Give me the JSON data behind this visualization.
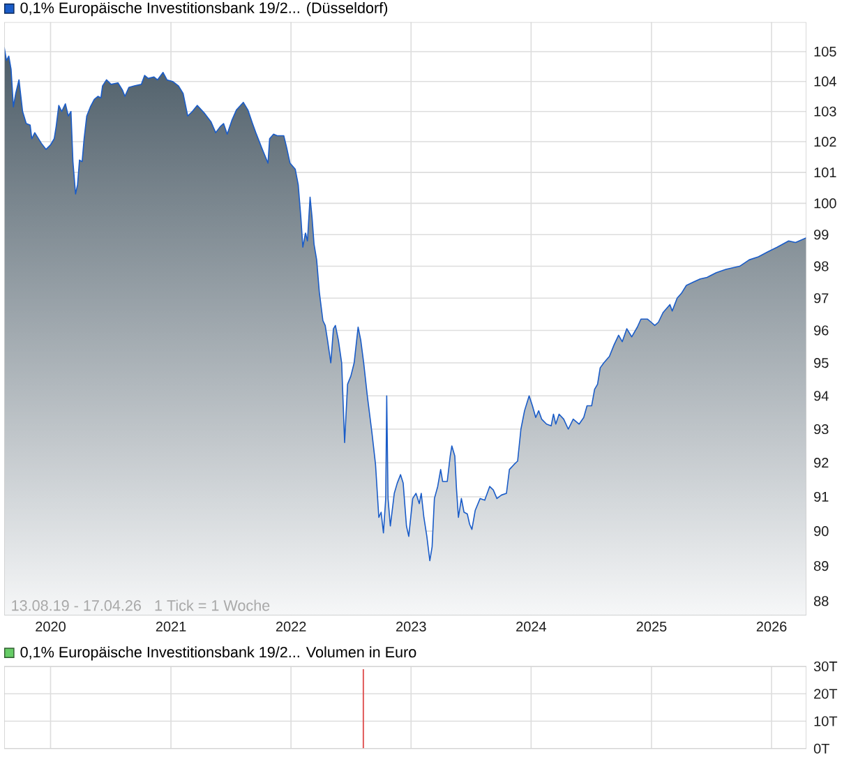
{
  "chart_data": [
    {
      "type": "area",
      "x": [
        "2019-08-13",
        "2019-08-20",
        "2019-08-27",
        "2019-09-03",
        "2019-09-10",
        "2019-09-17",
        "2019-09-27",
        "2019-10-08",
        "2019-10-19",
        "2019-10-31",
        "2019-11-05",
        "2019-11-14",
        "2019-12-04",
        "2019-12-18",
        "2020-01-01",
        "2020-01-12",
        "2020-01-18",
        "2020-01-26",
        "2020-02-04",
        "2020-02-15",
        "2020-02-24",
        "2020-03-03",
        "2020-03-09",
        "2020-03-17",
        "2020-03-23",
        "2020-03-29",
        "2020-04-06",
        "2020-04-12",
        "2020-04-20",
        "2020-05-01",
        "2020-05-13",
        "2020-05-24",
        "2020-06-02",
        "2020-06-07",
        "2020-06-19",
        "2020-07-03",
        "2020-07-24",
        "2020-08-07",
        "2020-08-14",
        "2020-08-26",
        "2020-09-12",
        "2020-10-03",
        "2020-10-13",
        "2020-10-24",
        "2020-11-10",
        "2020-11-21",
        "2020-12-08",
        "2020-12-20",
        "2021-01-06",
        "2021-01-24",
        "2021-02-07",
        "2021-02-21",
        "2021-03-07",
        "2021-03-22",
        "2021-04-12",
        "2021-05-03",
        "2021-05-17",
        "2021-05-31",
        "2021-06-10",
        "2021-06-21",
        "2021-07-05",
        "2021-07-19",
        "2021-08-09",
        "2021-08-23",
        "2021-09-06",
        "2021-09-16",
        "2021-10-04",
        "2021-10-23",
        "2021-10-28",
        "2021-11-09",
        "2021-11-20",
        "2021-12-10",
        "2021-12-19",
        "2021-12-29",
        "2022-01-14",
        "2022-01-23",
        "2022-01-31",
        "2022-02-06",
        "2022-02-14",
        "2022-02-20",
        "2022-02-28",
        "2022-03-06",
        "2022-03-12",
        "2022-03-20",
        "2022-03-28",
        "2022-04-08",
        "2022-04-15",
        "2022-04-22",
        "2022-05-02",
        "2022-05-10",
        "2022-05-16",
        "2022-05-25",
        "2022-06-04",
        "2022-06-13",
        "2022-06-22",
        "2022-07-02",
        "2022-07-12",
        "2022-07-24",
        "2022-08-01",
        "2022-08-10",
        "2022-08-21",
        "2022-09-04",
        "2022-09-15",
        "2022-09-25",
        "2022-10-02",
        "2022-10-09",
        "2022-10-16",
        "2022-10-19",
        "2022-10-23",
        "2022-10-30",
        "2022-11-11",
        "2022-11-20",
        "2022-11-30",
        "2022-12-08",
        "2022-12-18",
        "2022-12-25",
        "2023-01-06",
        "2023-01-16",
        "2023-01-26",
        "2023-02-01",
        "2023-02-09",
        "2023-02-18",
        "2023-02-27",
        "2023-03-06",
        "2023-03-13",
        "2023-03-23",
        "2023-04-01",
        "2023-04-07",
        "2023-04-21",
        "2023-04-30",
        "2023-05-05",
        "2023-05-14",
        "2023-05-19",
        "2023-05-25",
        "2023-06-03",
        "2023-06-11",
        "2023-06-21",
        "2023-06-28",
        "2023-07-05",
        "2023-07-15",
        "2023-07-30",
        "2023-08-13",
        "2023-08-28",
        "2023-09-08",
        "2023-09-19",
        "2023-10-03",
        "2023-10-18",
        "2023-10-27",
        "2023-11-10",
        "2023-11-21",
        "2023-12-01",
        "2023-12-12",
        "2023-12-26",
        "2024-01-05",
        "2024-01-15",
        "2024-01-24",
        "2024-02-02",
        "2024-02-17",
        "2024-03-02",
        "2024-03-09",
        "2024-03-16",
        "2024-03-26",
        "2024-04-09",
        "2024-04-23",
        "2024-05-08",
        "2024-05-26",
        "2024-06-09",
        "2024-06-19",
        "2024-07-03",
        "2024-07-12",
        "2024-07-21",
        "2024-07-29",
        "2024-08-09",
        "2024-08-26",
        "2024-09-09",
        "2024-09-23",
        "2024-10-04",
        "2024-10-18",
        "2024-11-02",
        "2024-11-19",
        "2024-11-30",
        "2024-12-20",
        "2024-12-31",
        "2025-01-11",
        "2025-01-22",
        "2025-02-05",
        "2025-02-26",
        "2025-03-05",
        "2025-03-20",
        "2025-04-02",
        "2025-04-17",
        "2025-05-08",
        "2025-05-29",
        "2025-06-19",
        "2025-07-17",
        "2025-08-15",
        "2025-09-26",
        "2025-10-25",
        "2025-11-22",
        "2025-12-20",
        "2026-01-18",
        "2026-02-22",
        "2026-03-15",
        "2026-04-17"
      ],
      "series": [
        {
          "name": "0,1% Europäische Investitionsbank 19/2... (Düsseldorf)",
          "color": "#1a5cc8",
          "values": [
            105.15,
            104.7,
            104.85,
            104.4,
            103.15,
            103.6,
            104.05,
            103.0,
            102.6,
            102.55,
            102.1,
            102.3,
            101.95,
            101.75,
            101.9,
            102.1,
            102.5,
            103.2,
            103.0,
            103.25,
            102.85,
            103.0,
            101.35,
            100.3,
            100.6,
            101.4,
            101.35,
            102.1,
            102.85,
            103.15,
            103.4,
            103.5,
            103.45,
            103.85,
            104.05,
            103.9,
            103.95,
            103.7,
            103.5,
            103.8,
            103.85,
            103.9,
            104.2,
            104.1,
            104.15,
            104.05,
            104.3,
            104.05,
            104.0,
            103.85,
            103.6,
            102.85,
            103.0,
            103.2,
            102.95,
            102.65,
            102.3,
            102.5,
            102.6,
            102.25,
            102.7,
            103.05,
            103.3,
            103.05,
            102.6,
            102.3,
            101.8,
            101.3,
            102.1,
            102.25,
            102.2,
            102.2,
            101.8,
            101.3,
            101.1,
            100.6,
            99.55,
            98.6,
            99.05,
            98.8,
            100.2,
            99.55,
            98.7,
            98.2,
            97.2,
            96.3,
            96.15,
            95.7,
            95.0,
            96.05,
            96.15,
            95.7,
            95.0,
            92.6,
            94.35,
            94.6,
            95.0,
            96.1,
            95.7,
            95.0,
            94.0,
            92.9,
            91.95,
            90.4,
            90.55,
            89.95,
            90.95,
            94.0,
            90.95,
            90.15,
            91.1,
            91.4,
            91.65,
            91.4,
            90.15,
            89.85,
            90.95,
            91.1,
            90.8,
            91.1,
            90.4,
            89.85,
            89.15,
            89.55,
            90.95,
            91.3,
            91.8,
            91.45,
            91.45,
            92.2,
            92.5,
            92.2,
            91.25,
            90.4,
            90.95,
            90.55,
            90.5,
            90.2,
            90.05,
            90.6,
            90.95,
            90.9,
            91.3,
            91.2,
            90.95,
            91.05,
            91.1,
            91.8,
            91.95,
            92.05,
            93.0,
            93.55,
            94.0,
            93.7,
            93.35,
            93.55,
            93.3,
            93.15,
            93.1,
            93.45,
            93.15,
            93.45,
            93.3,
            93.0,
            93.3,
            93.15,
            93.35,
            93.7,
            93.7,
            94.2,
            94.35,
            94.85,
            95.0,
            95.2,
            95.55,
            95.85,
            95.65,
            96.05,
            95.8,
            96.1,
            96.35,
            96.35,
            96.25,
            96.15,
            96.25,
            96.55,
            96.8,
            96.6,
            97.0,
            97.15,
            97.4,
            97.5,
            97.6,
            97.65,
            97.8,
            97.9,
            98.0,
            98.2,
            98.3,
            98.45,
            98.6,
            98.8,
            98.75,
            98.9
          ]
        }
      ],
      "xlim": [
        "2019-08-13",
        "2026-04-17"
      ],
      "xticks": [
        {
          "value": "2020-01-01",
          "label": "2020"
        },
        {
          "value": "2021-01-01",
          "label": "2021"
        },
        {
          "value": "2022-01-01",
          "label": "2022"
        },
        {
          "value": "2023-01-01",
          "label": "2023"
        },
        {
          "value": "2024-01-01",
          "label": "2024"
        },
        {
          "value": "2025-01-01",
          "label": "2025"
        },
        {
          "value": "2026-01-01",
          "label": "2026"
        }
      ],
      "ylim": [
        87.6,
        106
      ],
      "yticks": [
        88,
        89,
        90,
        91,
        92,
        93,
        94,
        95,
        96,
        97,
        98,
        99,
        100,
        101,
        102,
        103,
        104,
        105
      ],
      "log": true,
      "grid": true,
      "legend": "top left",
      "annotations": [
        "13.08.19 - 17.04.26",
        "1 Tick = 1 Woche"
      ]
    },
    {
      "type": "bar",
      "x": [
        "2022-08-09"
      ],
      "series": [
        {
          "name": "0,1% Europäische Investitionsbank 19/2... Volumen in Euro",
          "color": "#66cc66",
          "colors": [
            "#e05555"
          ],
          "values": [
            29
          ]
        }
      ],
      "xlim": [
        "2019-08-13",
        "2026-04-17"
      ],
      "xticks": [
        {
          "value": "2020-01-01",
          "label": null
        },
        {
          "value": "2021-01-01",
          "label": null
        },
        {
          "value": "2022-01-01",
          "label": null
        },
        {
          "value": "2023-01-01",
          "label": null
        },
        {
          "value": "2024-01-01",
          "label": null
        },
        {
          "value": "2025-01-01",
          "label": null
        },
        {
          "value": "2026-01-01",
          "label": null
        }
      ],
      "ylim": [
        0,
        30
      ],
      "yticks": [
        {
          "value": 0,
          "label": "0T"
        },
        {
          "value": 10,
          "label": "10T"
        },
        {
          "value": 20,
          "label": "20T"
        },
        {
          "value": 30,
          "label": "30T"
        }
      ],
      "grid": true,
      "legend": "top left",
      "tick_labels": "y"
    }
  ]
}
